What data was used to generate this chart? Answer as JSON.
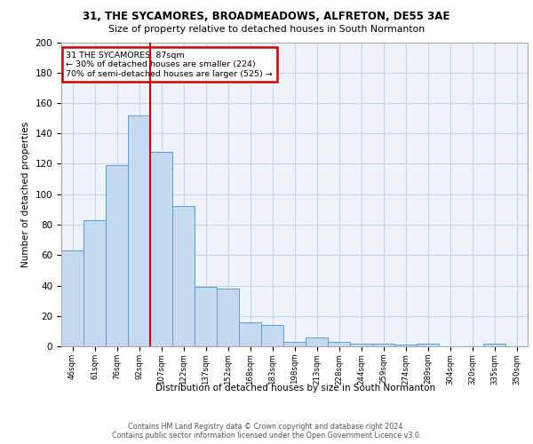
{
  "title1": "31, THE SYCAMORES, BROADMEADOWS, ALFRETON, DE55 3AE",
  "title2": "Size of property relative to detached houses in South Normanton",
  "xlabel": "Distribution of detached houses by size in South Normanton",
  "ylabel": "Number of detached properties",
  "categories": [
    "46sqm",
    "61sqm",
    "76sqm",
    "92sqm",
    "107sqm",
    "122sqm",
    "137sqm",
    "152sqm",
    "168sqm",
    "183sqm",
    "198sqm",
    "213sqm",
    "228sqm",
    "244sqm",
    "259sqm",
    "274sqm",
    "289sqm",
    "304sqm",
    "320sqm",
    "335sqm",
    "350sqm"
  ],
  "values": [
    63,
    83,
    119,
    152,
    128,
    92,
    39,
    38,
    16,
    14,
    3,
    6,
    3,
    2,
    2,
    1,
    2,
    0,
    0,
    2,
    0
  ],
  "bar_color": "#c5d9f0",
  "bar_edge_color": "#5a9fd4",
  "vline_x": 3.5,
  "vline_color": "#cc0000",
  "annotation_title": "31 THE SYCAMORES: 87sqm",
  "annotation_line1": "← 30% of detached houses are smaller (224)",
  "annotation_line2": "70% of semi-detached houses are larger (525) →",
  "annotation_box_color": "#cc0000",
  "footer1": "Contains HM Land Registry data © Crown copyright and database right 2024.",
  "footer2": "Contains public sector information licensed under the Open Government Licence v3.0.",
  "ylim": [
    0,
    200
  ],
  "yticks": [
    0,
    20,
    40,
    60,
    80,
    100,
    120,
    140,
    160,
    180,
    200
  ],
  "bg_color": "#eef2fa",
  "grid_color": "#c8d4e8"
}
